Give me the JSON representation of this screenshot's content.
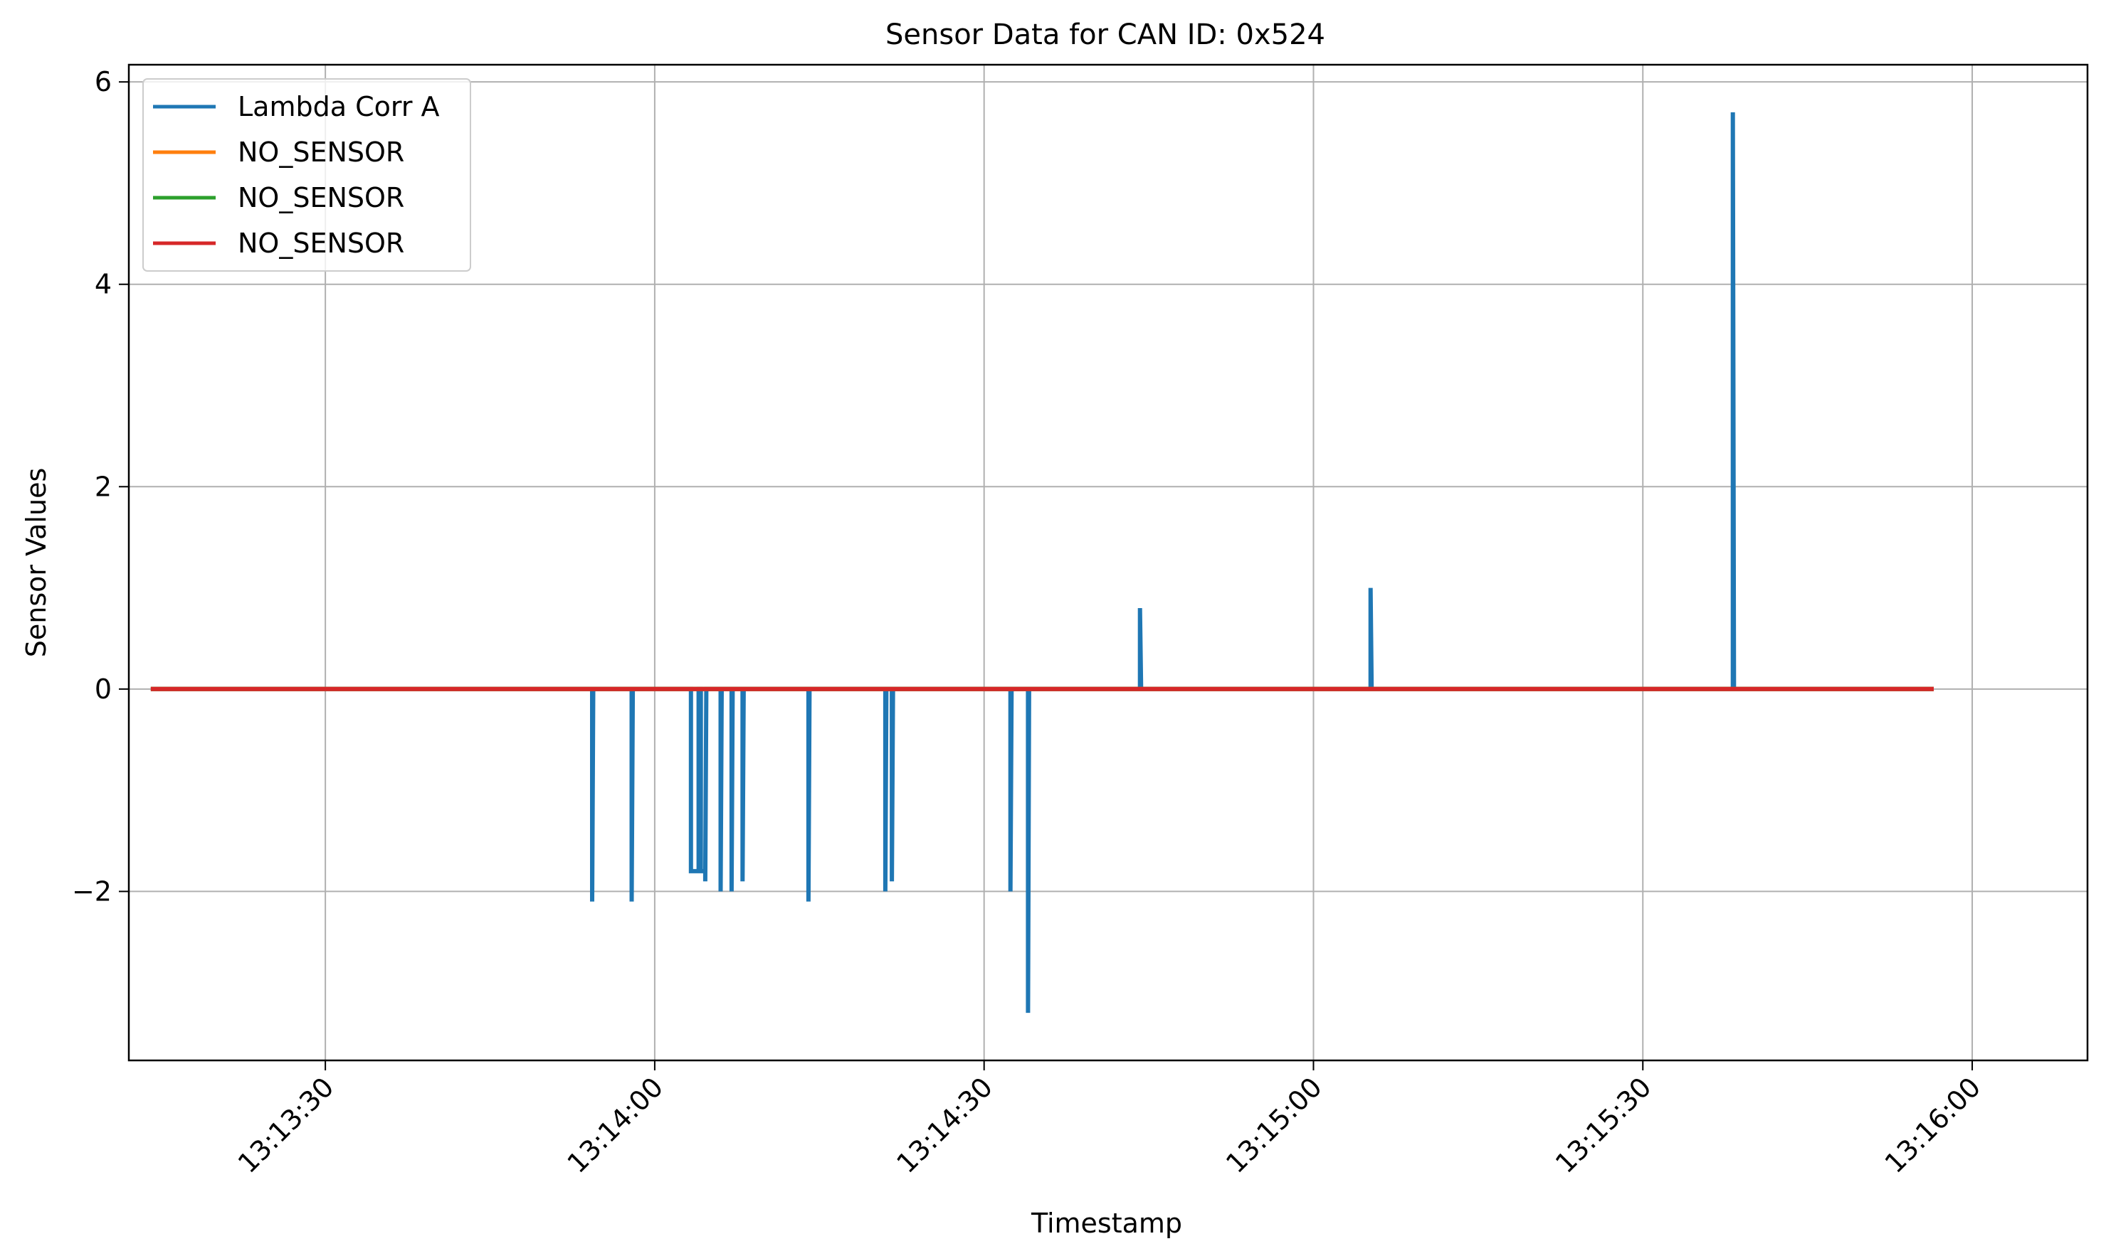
{
  "chart_data": {
    "type": "line",
    "title": "Sensor Data for CAN ID: 0x524",
    "xlabel": "Timestamp",
    "ylabel": "Sensor Values",
    "x_ticks": [
      "13:13:30",
      "13:14:00",
      "13:14:30",
      "13:15:00",
      "13:15:30",
      "13:16:00"
    ],
    "x_tick_seconds": [
      30,
      60,
      90,
      120,
      150,
      180
    ],
    "y_ticks": [
      -2,
      0,
      2,
      4,
      6
    ],
    "y_tick_labels": [
      "−2",
      "0",
      "2",
      "4",
      "6"
    ],
    "xlim": [
      "13:13:12",
      "13:16:10"
    ],
    "ylim": [
      -3.67,
      6.17
    ],
    "x_range_seconds": [
      12.1,
      190.5
    ],
    "grid": true,
    "legend_position": "top-left",
    "series": [
      {
        "name": "Lambda Corr A",
        "color": "#1f77b4",
        "points": [
          [
            14.1,
            0
          ],
          [
            54.3,
            0
          ],
          [
            54.3,
            -2.1
          ],
          [
            54.4,
            0
          ],
          [
            57.9,
            0
          ],
          [
            57.9,
            -2.1
          ],
          [
            58.0,
            0
          ],
          [
            63.3,
            0
          ],
          [
            63.3,
            -1.8
          ],
          [
            64.0,
            -1.8
          ],
          [
            64.0,
            0
          ],
          [
            64.2,
            0
          ],
          [
            64.2,
            -1.8
          ],
          [
            64.6,
            -1.8
          ],
          [
            64.6,
            -1.9
          ],
          [
            64.7,
            0
          ],
          [
            66.0,
            0
          ],
          [
            66.0,
            -2.0
          ],
          [
            66.1,
            0
          ],
          [
            67.0,
            0
          ],
          [
            67.0,
            -2.0
          ],
          [
            67.1,
            0
          ],
          [
            68.0,
            0
          ],
          [
            68.0,
            -1.9
          ],
          [
            68.1,
            0
          ],
          [
            74.0,
            0
          ],
          [
            74.0,
            -2.1
          ],
          [
            74.1,
            0
          ],
          [
            81.0,
            0
          ],
          [
            81.0,
            -2.0
          ],
          [
            81.1,
            0
          ],
          [
            81.6,
            0
          ],
          [
            81.6,
            -1.9
          ],
          [
            81.7,
            0
          ],
          [
            92.4,
            0
          ],
          [
            92.4,
            -2.0
          ],
          [
            92.5,
            0
          ],
          [
            94.0,
            0
          ],
          [
            94.0,
            -3.2
          ],
          [
            94.1,
            0
          ],
          [
            104.2,
            0
          ],
          [
            104.2,
            0.8
          ],
          [
            104.3,
            0
          ],
          [
            125.2,
            0
          ],
          [
            125.2,
            1.0
          ],
          [
            125.3,
            0
          ],
          [
            158.2,
            0
          ],
          [
            158.2,
            5.7
          ],
          [
            158.3,
            0
          ],
          [
            176.5,
            0
          ]
        ]
      },
      {
        "name": "NO_SENSOR",
        "color": "#ff7f0e",
        "points": [
          [
            14.1,
            0
          ],
          [
            176.5,
            0
          ]
        ]
      },
      {
        "name": "NO_SENSOR",
        "color": "#2ca02c",
        "points": [
          [
            14.1,
            0
          ],
          [
            176.5,
            0
          ]
        ]
      },
      {
        "name": "NO_SENSOR",
        "color": "#d62728",
        "points": [
          [
            14.1,
            0
          ],
          [
            176.5,
            0
          ]
        ]
      }
    ]
  }
}
